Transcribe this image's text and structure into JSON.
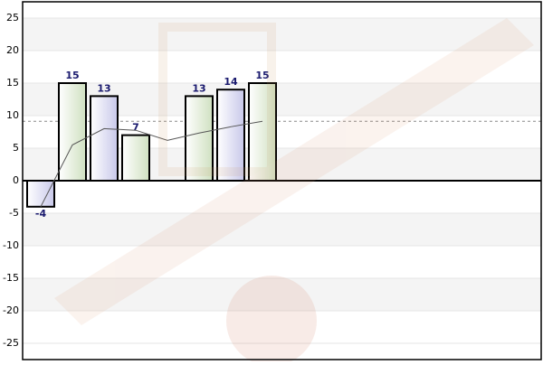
{
  "chart_data": {
    "type": "bar",
    "categories": [
      null,
      null,
      null,
      null,
      null,
      null,
      null,
      null
    ],
    "values": [
      -4,
      15,
      13,
      7,
      null,
      13,
      14,
      15
    ],
    "colors": [
      "#d4d4ee",
      "#d8e6cc",
      "#d4d4ee",
      "#d8e6cc",
      "#d4d4ee",
      "#d8e6cc",
      "#d4d4ee",
      "#d8e6cc"
    ],
    "line": {
      "values": [
        -4,
        5.5,
        8,
        7.75,
        6.2,
        7.33,
        8.29,
        9.13
      ],
      "color": "#555555"
    },
    "average_line": 9.13,
    "ylim": [
      -27.5,
      27.5
    ],
    "yticks": [
      -25,
      -20,
      -15,
      -10,
      -5,
      0,
      5,
      10,
      15,
      20,
      25
    ],
    "grid": true
  }
}
